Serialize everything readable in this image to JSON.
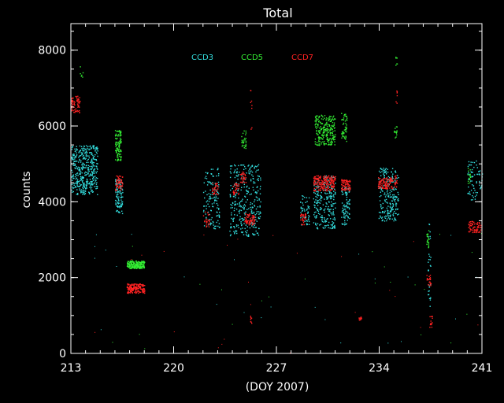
{
  "chart_data": {
    "type": "scatter",
    "title": "Total",
    "xlabel": "(DOY 2007)",
    "ylabel": "counts",
    "xlim": [
      213,
      241
    ],
    "ylim": [
      0,
      8700
    ],
    "xticks": [
      213,
      220,
      227,
      234,
      241
    ],
    "yticks": [
      0,
      2000,
      4000,
      6000,
      8000
    ],
    "x_minor_step": 1,
    "y_minor_step": 500,
    "grid": false,
    "background": "#000000",
    "axis_color": "#ffffff",
    "legend_position": "top-center",
    "series": [
      {
        "name": "CCD3",
        "color": "#33dddd",
        "clusters": [
          {
            "x": [
              213.0,
              214.8
            ],
            "y": [
              4200,
              5500
            ],
            "n": 420
          },
          {
            "x": [
              216.0,
              216.5
            ],
            "y": [
              3700,
              4600
            ],
            "n": 100
          },
          {
            "x": [
              222.0,
              223.1
            ],
            "y": [
              3300,
              4900
            ],
            "n": 130
          },
          {
            "x": [
              223.8,
              225.9
            ],
            "y": [
              3100,
              5000
            ],
            "n": 320
          },
          {
            "x": [
              228.6,
              229.2
            ],
            "y": [
              3400,
              4200
            ],
            "n": 50
          },
          {
            "x": [
              229.5,
              231.0
            ],
            "y": [
              3300,
              4700
            ],
            "n": 250
          },
          {
            "x": [
              231.4,
              232.0
            ],
            "y": [
              3400,
              4400
            ],
            "n": 90
          },
          {
            "x": [
              233.9,
              235.3
            ],
            "y": [
              3500,
              4900
            ],
            "n": 230
          },
          {
            "x": [
              237.3,
              237.5
            ],
            "y": [
              1200,
              3700
            ],
            "n": 30
          },
          {
            "x": [
              240.0,
              241.0
            ],
            "y": [
              4000,
              5100
            ],
            "n": 70
          }
        ]
      },
      {
        "name": "CCD5",
        "color": "#33ee33",
        "clusters": [
          {
            "x": [
              213.6,
              213.8
            ],
            "y": [
              7300,
              7600
            ],
            "n": 6
          },
          {
            "x": [
              216.0,
              216.4
            ],
            "y": [
              5100,
              5900
            ],
            "n": 110
          },
          {
            "x": [
              216.8,
              218.0
            ],
            "y": [
              2250,
              2450
            ],
            "n": 200
          },
          {
            "x": [
              224.6,
              224.9
            ],
            "y": [
              5400,
              5900
            ],
            "n": 30
          },
          {
            "x": [
              229.6,
              231.0
            ],
            "y": [
              5500,
              6300
            ],
            "n": 240
          },
          {
            "x": [
              231.4,
              231.8
            ],
            "y": [
              5600,
              6400
            ],
            "n": 50
          },
          {
            "x": [
              235.0,
              235.2
            ],
            "y": [
              5700,
              6000
            ],
            "n": 14
          },
          {
            "x": [
              235.1,
              235.2
            ],
            "y": [
              7600,
              7900
            ],
            "n": 6
          },
          {
            "x": [
              237.2,
              237.4
            ],
            "y": [
              2800,
              3300
            ],
            "n": 20
          },
          {
            "x": [
              240.0,
              240.2
            ],
            "y": [
              4500,
              4900
            ],
            "n": 14
          }
        ]
      },
      {
        "name": "CCD7",
        "color": "#ff2222",
        "clusters": [
          {
            "x": [
              213.0,
              213.6
            ],
            "y": [
              6350,
              6800
            ],
            "n": 70
          },
          {
            "x": [
              216.0,
              216.5
            ],
            "y": [
              4300,
              4700
            ],
            "n": 60
          },
          {
            "x": [
              216.8,
              218.0
            ],
            "y": [
              1600,
              1850
            ],
            "n": 180
          },
          {
            "x": [
              222.0,
              222.4
            ],
            "y": [
              3350,
              3750
            ],
            "n": 24
          },
          {
            "x": [
              222.6,
              223.0
            ],
            "y": [
              4200,
              4500
            ],
            "n": 30
          },
          {
            "x": [
              224.0,
              224.4
            ],
            "y": [
              4200,
              4500
            ],
            "n": 30
          },
          {
            "x": [
              224.5,
              224.9
            ],
            "y": [
              4500,
              4800
            ],
            "n": 30
          },
          {
            "x": [
              224.8,
              225.5
            ],
            "y": [
              3400,
              3700
            ],
            "n": 70
          },
          {
            "x": [
              225.2,
              225.3
            ],
            "y": [
              5800,
              7000
            ],
            "n": 8
          },
          {
            "x": [
              225.2,
              225.3
            ],
            "y": [
              800,
              1000
            ],
            "n": 8
          },
          {
            "x": [
              228.6,
              229.0
            ],
            "y": [
              3400,
              3700
            ],
            "n": 30
          },
          {
            "x": [
              229.5,
              231.0
            ],
            "y": [
              4300,
              4700
            ],
            "n": 200
          },
          {
            "x": [
              231.4,
              232.0
            ],
            "y": [
              4300,
              4600
            ],
            "n": 80
          },
          {
            "x": [
              232.6,
              232.8
            ],
            "y": [
              800,
              1000
            ],
            "n": 10
          },
          {
            "x": [
              233.9,
              234.9
            ],
            "y": [
              4350,
              4650
            ],
            "n": 110
          },
          {
            "x": [
              235.0,
              235.2
            ],
            "y": [
              4400,
              4700
            ],
            "n": 20
          },
          {
            "x": [
              235.1,
              235.2
            ],
            "y": [
              6600,
              7000
            ],
            "n": 6
          },
          {
            "x": [
              237.2,
              237.5
            ],
            "y": [
              1800,
              2100
            ],
            "n": 24
          },
          {
            "x": [
              237.4,
              237.6
            ],
            "y": [
              700,
              1000
            ],
            "n": 14
          },
          {
            "x": [
              240.0,
              240.9
            ],
            "y": [
              3200,
              3500
            ],
            "n": 70
          }
        ]
      }
    ],
    "scatter_noise": {
      "count": 70,
      "x": [
        213,
        241
      ],
      "y": [
        0,
        3200
      ]
    }
  }
}
